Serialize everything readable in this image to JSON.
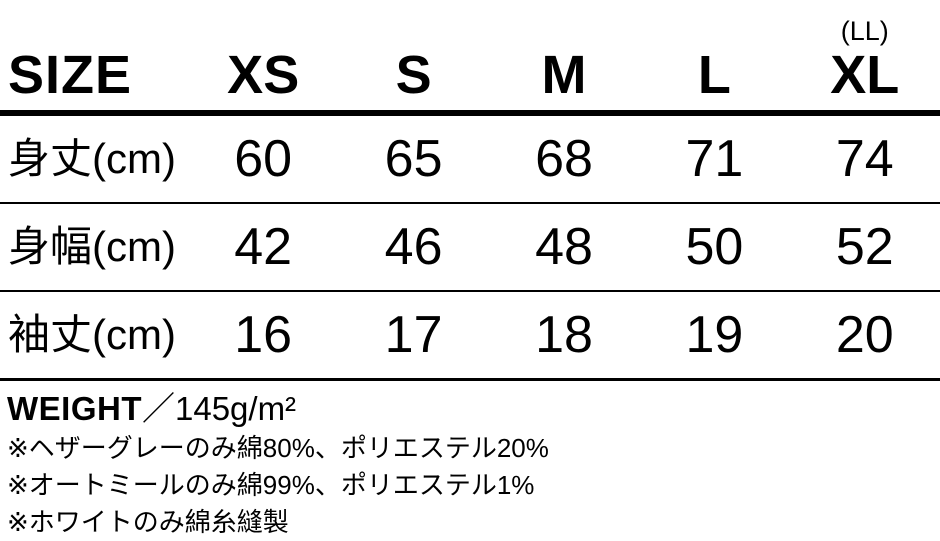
{
  "chart_data": {
    "type": "table",
    "title": "SIZE",
    "header": {
      "label": "SIZE",
      "sizes": [
        "XS",
        "S",
        "M",
        "L",
        "XL"
      ],
      "xl_note": "(LL)"
    },
    "rows": [
      {
        "label": "身丈(cm)",
        "values": [
          "60",
          "65",
          "68",
          "71",
          "74"
        ]
      },
      {
        "label": "身幅(cm)",
        "values": [
          "42",
          "46",
          "48",
          "50",
          "52"
        ]
      },
      {
        "label": "袖丈(cm)",
        "values": [
          "16",
          "17",
          "18",
          "19",
          "20"
        ]
      }
    ],
    "weight_label": "WEIGHT",
    "weight_separator": "／",
    "weight_value": "145g/m²",
    "notes": [
      "※ヘザーグレーのみ綿80%、ポリエステル20%",
      "※オートミールのみ綿99%、ポリエステル1%",
      "※ホワイトのみ綿糸縫製"
    ],
    "colors": {
      "text": "#000000",
      "background": "#ffffff",
      "rule": "#000000"
    }
  }
}
